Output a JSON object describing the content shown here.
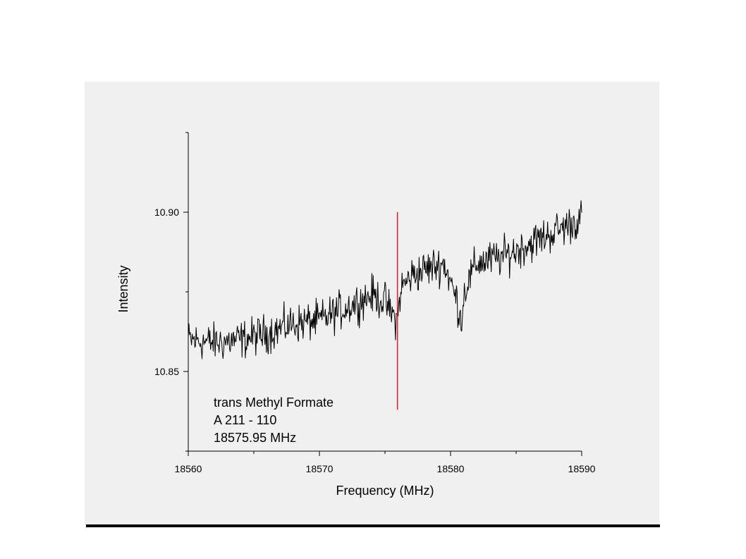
{
  "slide": {
    "panel_color": "#f0f0f0",
    "rule_color": "#000000"
  },
  "chart_data": {
    "type": "line",
    "xlabel": "Frequency (MHz)",
    "ylabel": "Intensity",
    "xlim": [
      18560,
      18590
    ],
    "ylim": [
      10.825,
      10.925
    ],
    "x_ticks": [
      18560,
      18570,
      18580,
      18590
    ],
    "x_tick_labels": [
      "18560",
      "18570",
      "18580",
      "18590"
    ],
    "y_ticks": [
      10.85,
      10.9
    ],
    "y_tick_labels": [
      "10.85",
      "10.90"
    ],
    "grid": false,
    "series": [
      {
        "color": "#000000",
        "x_start": 18560,
        "x_step": 0.05,
        "baseline_points": [
          [
            18560,
            10.86
          ],
          [
            18562,
            10.859
          ],
          [
            18564,
            10.86
          ],
          [
            18566,
            10.862
          ],
          [
            18568,
            10.865
          ],
          [
            18570,
            10.866
          ],
          [
            18572,
            10.87
          ],
          [
            18574,
            10.874
          ],
          [
            18575,
            10.872
          ],
          [
            18575.5,
            10.868
          ],
          [
            18575.95,
            10.866
          ],
          [
            18576.2,
            10.876
          ],
          [
            18577,
            10.88
          ],
          [
            18578,
            10.882
          ],
          [
            18579.5,
            10.884
          ],
          [
            18580,
            10.878
          ],
          [
            18580.5,
            10.872
          ],
          [
            18580.8,
            10.866
          ],
          [
            18581.1,
            10.876
          ],
          [
            18582,
            10.884
          ],
          [
            18584,
            10.886
          ],
          [
            18586,
            10.89
          ],
          [
            18588,
            10.894
          ],
          [
            18590,
            10.898
          ]
        ],
        "noise_amplitude": 0.003
      }
    ],
    "markers": [
      {
        "x": 18575.95,
        "y_from": 10.838,
        "y_to": 10.9,
        "color": "#e8192c"
      }
    ],
    "annotation_lines": [
      "trans Methyl Formate",
      "A 211 - 110",
      "18575.95 MHz"
    ]
  }
}
